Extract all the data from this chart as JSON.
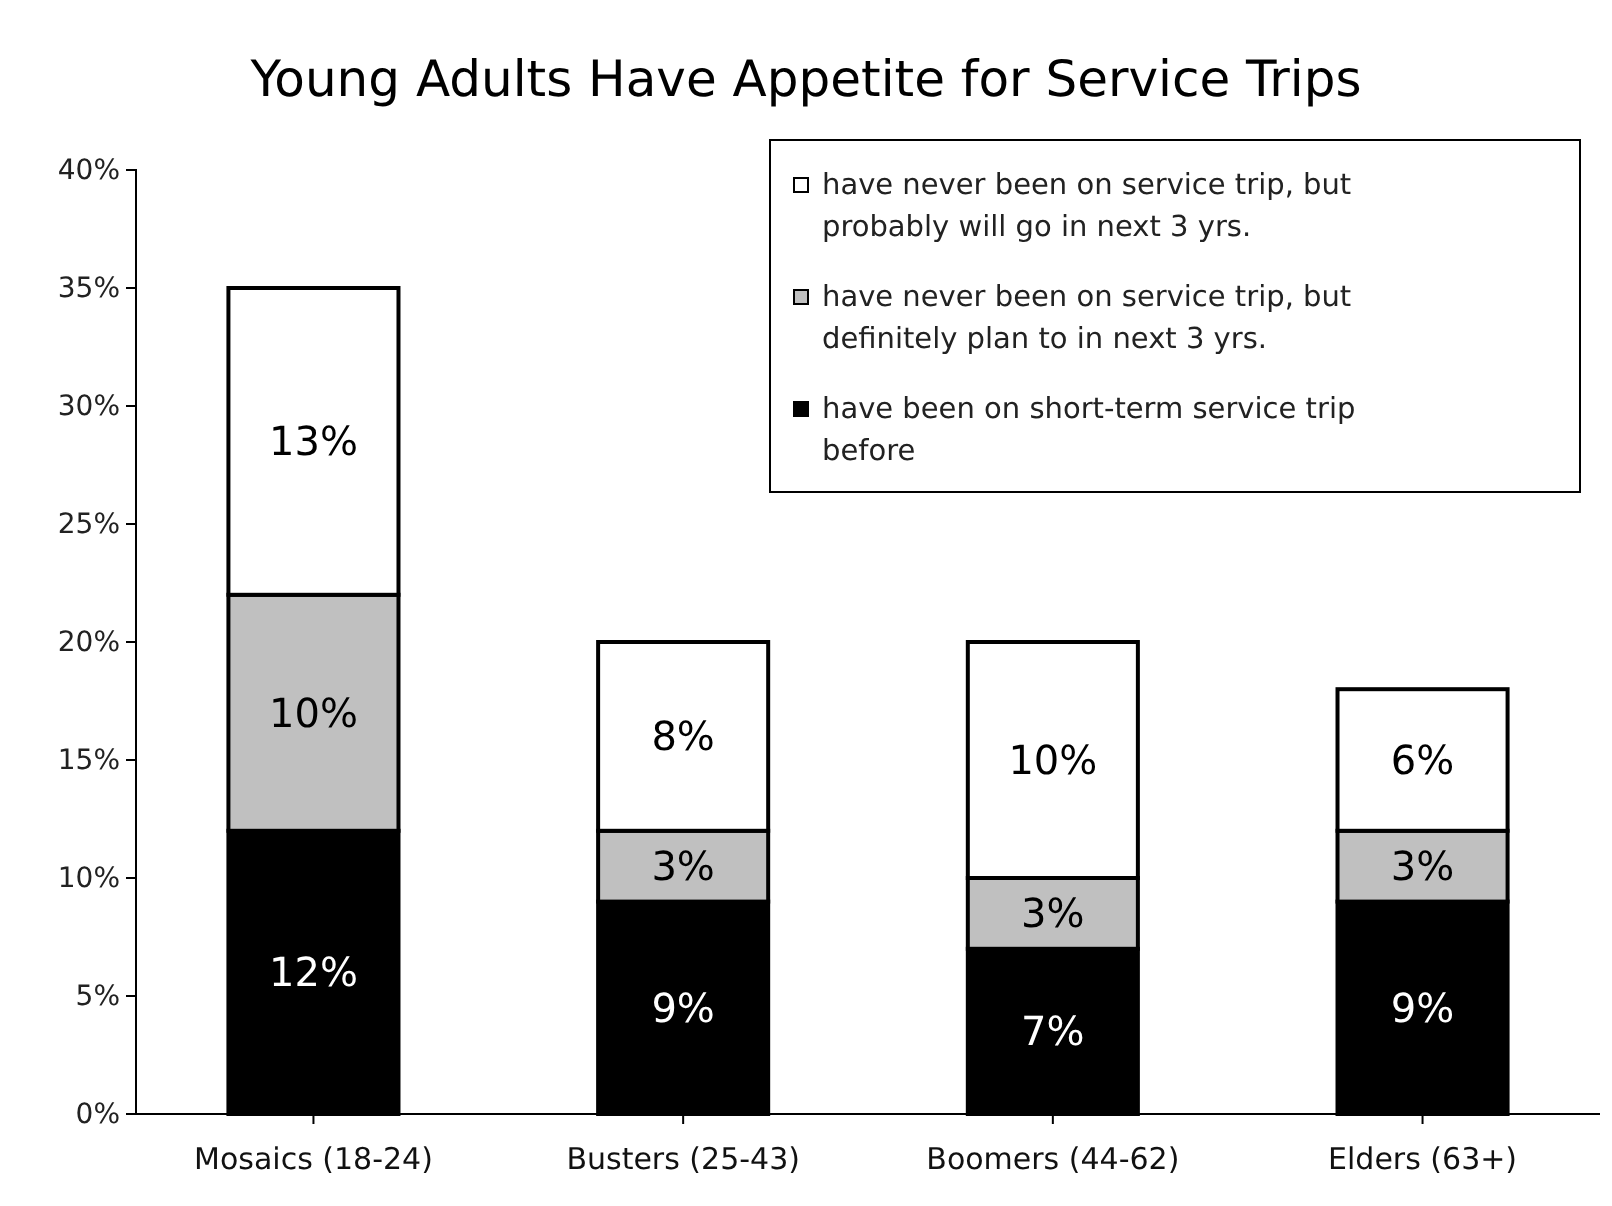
{
  "chart_data": {
    "type": "bar",
    "title": "Young Adults Have Appetite for Service Trips",
    "categories": [
      "Mosaics (18-24)",
      "Busters (25-43)",
      "Boomers (44-62)",
      "Elders (63+)"
    ],
    "stacked": true,
    "series": [
      {
        "name": "have been on short-term service trip before",
        "color": "#000000",
        "values": [
          12,
          9,
          7,
          9
        ],
        "value_labels": [
          "12%",
          "9%",
          "7%",
          "9%"
        ]
      },
      {
        "name": "have never been on service trip, but definitely plan to in next 3 yrs.",
        "color": "#c0c0c0",
        "values": [
          10,
          3,
          3,
          3
        ],
        "value_labels": [
          "10%",
          "3%",
          "3%",
          "3%"
        ]
      },
      {
        "name": "have never been on service trip, but probably will go in next 3 yrs.",
        "color": "#ffffff",
        "values": [
          13,
          8,
          10,
          6
        ],
        "value_labels": [
          "13%",
          "8%",
          "10%",
          "6%"
        ]
      }
    ],
    "ylim": [
      0,
      40
    ],
    "yticks": [
      {
        "value": 0,
        "label": "0%"
      },
      {
        "value": 5,
        "label": "5%"
      },
      {
        "value": 10,
        "label": "10%"
      },
      {
        "value": 15,
        "label": "15%"
      },
      {
        "value": 20,
        "label": "20%"
      },
      {
        "value": 25,
        "label": "25%"
      },
      {
        "value": 30,
        "label": "30%"
      },
      {
        "value": 35,
        "label": "35%"
      },
      {
        "value": 40,
        "label": "40%"
      }
    ],
    "grid": false,
    "legend": "top right"
  }
}
